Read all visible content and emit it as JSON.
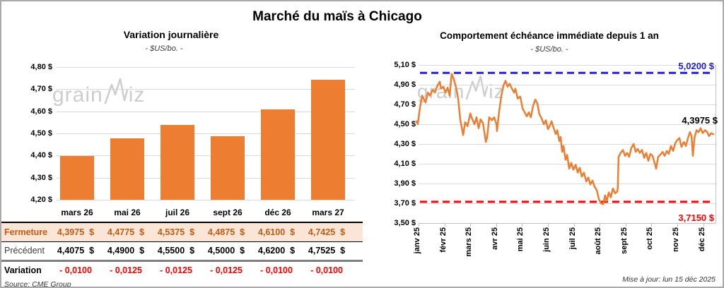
{
  "page": {
    "title": "Marché du maïs à Chicago",
    "source_note": "Source: CME Group",
    "updated_note": "Mise à jour: lun 15 déc 2025",
    "watermark_pre": "grain",
    "watermark_post": "iz"
  },
  "colors": {
    "orange": "#ED7D31",
    "close_row_bg": "#FBE5D6",
    "close_text": "#C55A11",
    "blue_line": "#2323CE",
    "red_line": "#FF0000",
    "grid": "#d9d9d9",
    "watermark": "#cdcdcd"
  },
  "chart_data": [
    {
      "type": "bar",
      "title": "Variation journalière",
      "subtitle": "- $US/bo. -",
      "categories": [
        "mars 26",
        "mai 26",
        "juil 26",
        "sept 26",
        "déc 26",
        "mars 27"
      ],
      "values": [
        4.3975,
        4.4775,
        4.5375,
        4.4875,
        4.61,
        4.7425
      ],
      "ylim": [
        4.2,
        4.8
      ],
      "ytick_labels": [
        "4,80 $",
        "4,70 $",
        "4,60 $",
        "4,50 $",
        "4,40 $",
        "4,30 $",
        "4,20 $"
      ],
      "bar_color": "#ED7D31",
      "grid": true,
      "table": {
        "rows": [
          {
            "key": "close",
            "label": "Fermeture",
            "values": [
              "4,3975  $",
              "4,4775  $",
              "4,5375  $",
              "4,4875  $",
              "4,6100  $",
              "4,7425  $"
            ]
          },
          {
            "key": "previous",
            "label": "Précédent",
            "values": [
              "4,4075  $",
              "4,4900  $",
              "4,5500  $",
              "4,5000  $",
              "4,6200  $",
              "4,7525  $"
            ]
          },
          {
            "key": "variation",
            "label": "Variation",
            "values": [
              "- 0,0100",
              "- 0,0125",
              "- 0,0125",
              "- 0,0125",
              "- 0,0100",
              "- 0,0100"
            ]
          }
        ]
      }
    },
    {
      "type": "line",
      "title": "Comportement échéance immédiate depuis 1 an",
      "subtitle": "- $US/bo. -",
      "x_labels": [
        "janv 25",
        "févr 25",
        "mars 25",
        "avr 25",
        "mai 25",
        "juin 25",
        "juil 25",
        "août 25",
        "sept 25",
        "oct 25",
        "nov 25",
        "déc 25"
      ],
      "ytick_labels": [
        "5,10 $",
        "4,90 $",
        "4,70 $",
        "4,50 $",
        "4,30 $",
        "4,10 $",
        "3,90 $",
        "3,70 $",
        "3,50 $"
      ],
      "ylim": [
        3.5,
        5.1
      ],
      "grid": true,
      "legend_position": "none",
      "line_color": "#ED7D31",
      "high_line": {
        "value": 5.02,
        "label": "5,0200 $",
        "color": "#2323CE"
      },
      "low_line": {
        "value": 3.715,
        "label": "3,7150 $",
        "color": "#FF0000"
      },
      "last_point_label": "4,3975 $",
      "last_value": 4.3975,
      "points": [
        [
          -0.08,
          4.53
        ],
        [
          -0.03,
          4.5
        ],
        [
          0.05,
          4.66
        ],
        [
          0.14,
          4.79
        ],
        [
          0.19,
          4.76
        ],
        [
          0.27,
          4.72
        ],
        [
          0.36,
          4.82
        ],
        [
          0.44,
          4.79
        ],
        [
          0.55,
          4.85
        ],
        [
          0.63,
          4.82
        ],
        [
          0.71,
          4.88
        ],
        [
          0.82,
          4.93
        ],
        [
          0.87,
          4.86
        ],
        [
          0.96,
          4.88
        ],
        [
          1.04,
          4.82
        ],
        [
          1.12,
          4.87
        ],
        [
          1.2,
          4.79
        ],
        [
          1.28,
          5.01
        ],
        [
          1.37,
          4.95
        ],
        [
          1.45,
          4.87
        ],
        [
          1.53,
          4.76
        ],
        [
          1.61,
          4.55
        ],
        [
          1.72,
          4.39
        ],
        [
          1.8,
          4.52
        ],
        [
          1.89,
          4.48
        ],
        [
          2.0,
          4.61
        ],
        [
          2.08,
          4.55
        ],
        [
          2.16,
          4.5
        ],
        [
          2.24,
          4.57
        ],
        [
          2.32,
          4.46
        ],
        [
          2.4,
          4.55
        ],
        [
          2.49,
          4.51
        ],
        [
          2.6,
          4.32
        ],
        [
          2.65,
          4.37
        ],
        [
          2.73,
          4.57
        ],
        [
          2.84,
          4.54
        ],
        [
          2.92,
          4.57
        ],
        [
          3.01,
          4.5
        ],
        [
          3.03,
          4.43
        ],
        [
          3.11,
          4.62
        ],
        [
          3.2,
          4.79
        ],
        [
          3.28,
          4.89
        ],
        [
          3.36,
          4.94
        ],
        [
          3.44,
          4.88
        ],
        [
          3.52,
          4.91
        ],
        [
          3.61,
          4.86
        ],
        [
          3.69,
          4.82
        ],
        [
          3.74,
          4.86
        ],
        [
          3.83,
          4.76
        ],
        [
          3.93,
          4.78
        ],
        [
          4.02,
          4.66
        ],
        [
          4.1,
          4.62
        ],
        [
          4.18,
          4.58
        ],
        [
          4.26,
          4.62
        ],
        [
          4.34,
          4.57
        ],
        [
          4.43,
          4.69
        ],
        [
          4.51,
          4.75
        ],
        [
          4.59,
          4.71
        ],
        [
          4.67,
          4.6
        ],
        [
          4.75,
          4.56
        ],
        [
          4.84,
          4.5
        ],
        [
          4.92,
          4.54
        ],
        [
          5.0,
          4.45
        ],
        [
          5.08,
          4.49
        ],
        [
          5.14,
          4.53
        ],
        [
          5.22,
          4.46
        ],
        [
          5.3,
          4.4
        ],
        [
          5.36,
          4.44
        ],
        [
          5.44,
          4.33
        ],
        [
          5.49,
          4.37
        ],
        [
          5.55,
          4.22
        ],
        [
          5.6,
          4.28
        ],
        [
          5.68,
          4.14
        ],
        [
          5.74,
          4.19
        ],
        [
          5.82,
          4.05
        ],
        [
          5.9,
          4.11
        ],
        [
          5.98,
          4.04
        ],
        [
          6.07,
          4.09
        ],
        [
          6.15,
          4.01
        ],
        [
          6.23,
          4.06
        ],
        [
          6.31,
          3.97
        ],
        [
          6.39,
          4.01
        ],
        [
          6.48,
          3.92
        ],
        [
          6.56,
          3.96
        ],
        [
          6.64,
          3.89
        ],
        [
          6.72,
          3.93
        ],
        [
          6.8,
          3.87
        ],
        [
          6.89,
          3.83
        ],
        [
          6.97,
          3.74
        ],
        [
          7.05,
          3.7
        ],
        [
          7.13,
          3.69
        ],
        [
          7.21,
          3.78
        ],
        [
          7.27,
          3.72
        ],
        [
          7.35,
          3.81
        ],
        [
          7.43,
          3.76
        ],
        [
          7.51,
          3.85
        ],
        [
          7.6,
          3.8
        ],
        [
          7.68,
          3.82
        ],
        [
          7.7,
          3.86
        ],
        [
          7.73,
          4.17
        ],
        [
          7.81,
          4.21
        ],
        [
          7.9,
          4.24
        ],
        [
          7.98,
          4.18
        ],
        [
          8.06,
          4.21
        ],
        [
          8.14,
          4.17
        ],
        [
          8.22,
          4.26
        ],
        [
          8.31,
          4.3
        ],
        [
          8.39,
          4.22
        ],
        [
          8.47,
          4.25
        ],
        [
          8.55,
          4.21
        ],
        [
          8.63,
          4.24
        ],
        [
          8.72,
          4.16
        ],
        [
          8.8,
          4.21
        ],
        [
          8.88,
          4.13
        ],
        [
          8.96,
          4.2
        ],
        [
          9.04,
          4.18
        ],
        [
          9.13,
          4.1
        ],
        [
          9.18,
          4.05
        ],
        [
          9.26,
          4.17
        ],
        [
          9.34,
          4.19
        ],
        [
          9.43,
          4.22
        ],
        [
          9.51,
          4.18
        ],
        [
          9.59,
          4.23
        ],
        [
          9.67,
          4.2
        ],
        [
          9.75,
          4.28
        ],
        [
          9.84,
          4.23
        ],
        [
          9.92,
          4.31
        ],
        [
          10.0,
          4.34
        ],
        [
          10.08,
          4.36
        ],
        [
          10.16,
          4.27
        ],
        [
          10.25,
          4.32
        ],
        [
          10.33,
          4.28
        ],
        [
          10.41,
          4.36
        ],
        [
          10.49,
          4.42
        ],
        [
          10.55,
          4.38
        ],
        [
          10.6,
          4.18
        ],
        [
          10.66,
          4.36
        ],
        [
          10.74,
          4.44
        ],
        [
          10.82,
          4.42
        ],
        [
          10.9,
          4.46
        ],
        [
          10.98,
          4.41
        ],
        [
          11.07,
          4.44
        ],
        [
          11.15,
          4.42
        ],
        [
          11.23,
          4.38
        ],
        [
          11.31,
          4.41
        ],
        [
          11.39,
          4.3975
        ]
      ]
    }
  ]
}
